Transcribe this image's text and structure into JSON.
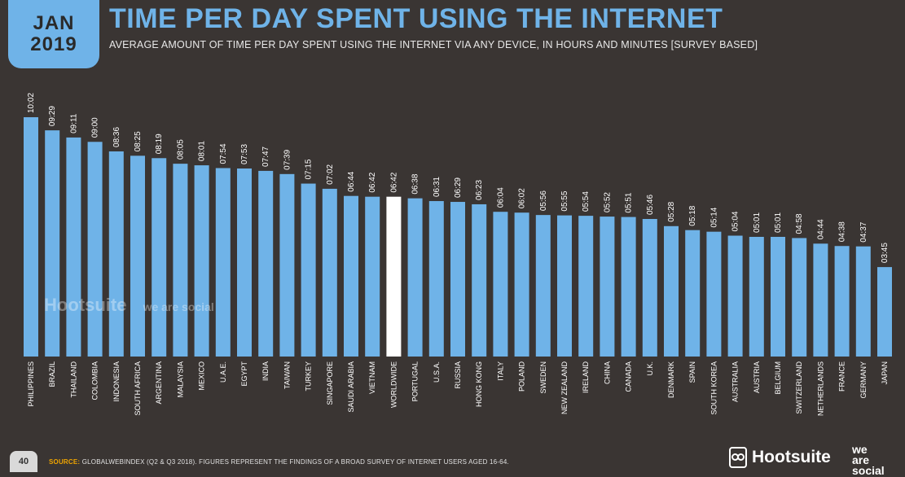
{
  "header": {
    "month": "JAN",
    "year": "2019",
    "title": "TIME PER DAY SPENT USING THE INTERNET",
    "subtitle": "AVERAGE AMOUNT OF TIME PER DAY SPENT USING THE INTERNET VIA ANY DEVICE, IN HOURS AND MINUTES [SURVEY BASED]"
  },
  "footer": {
    "page_number": "40",
    "source_label": "SOURCE:",
    "source_text": "GLOBALWEBINDEX (Q2 & Q3 2018). FIGURES REPRESENT THE FINDINGS OF A BROAD SURVEY OF INTERNET USERS AGED 16-64.",
    "brand_hootsuite": "Hootsuite",
    "brand_we": "we",
    "brand_are": "are",
    "brand_social": "social"
  },
  "watermark": {
    "hootsuite": "Hootsuite",
    "we_are_social": "we are social"
  },
  "colors": {
    "bar": "#6fb3e8",
    "highlight_bar": "#ffffff",
    "background": "#3a3533",
    "accent": "#6fb3e8",
    "source_label": "#f0a500"
  },
  "chart_data": {
    "type": "bar",
    "title": "TIME PER DAY SPENT USING THE INTERNET",
    "ylim": [
      0,
      10.2
    ],
    "categories": [
      "PHILIPPINES",
      "BRAZIL",
      "THAILAND",
      "COLOMBIA",
      "INDONESIA",
      "SOUTH AFRICA",
      "ARGENTINA",
      "MALAYSIA",
      "MEXICO",
      "U.A.E.",
      "EGYPT",
      "INDIA",
      "TAIWAN",
      "TURKEY",
      "SINGAPORE",
      "SAUDI ARABIA",
      "VIETNAM",
      "WORLDWIDE",
      "PORTUGAL",
      "U.S.A.",
      "RUSSIA",
      "HONG KONG",
      "ITALY",
      "POLAND",
      "SWEDEN",
      "NEW ZEALAND",
      "IRELAND",
      "CHINA",
      "CANADA",
      "U.K.",
      "DENMARK",
      "SPAIN",
      "SOUTH KOREA",
      "AUSTRALIA",
      "AUSTRIA",
      "BELGIUM",
      "SWITZERLAND",
      "NETHERLANDS",
      "FRANCE",
      "GERMANY",
      "JAPAN"
    ],
    "labels": [
      "10:02",
      "09:29",
      "09:11",
      "09:00",
      "08:36",
      "08:25",
      "08:19",
      "08:05",
      "08:01",
      "07:54",
      "07:53",
      "07:47",
      "07:39",
      "07:15",
      "07:02",
      "06:44",
      "06:42",
      "06:42",
      "06:38",
      "06:31",
      "06:29",
      "06:23",
      "06:04",
      "06:02",
      "05:56",
      "05:55",
      "05:54",
      "05:52",
      "05:51",
      "05:46",
      "05:28",
      "05:18",
      "05:14",
      "05:04",
      "05:01",
      "05:01",
      "04:58",
      "04:44",
      "04:38",
      "04:37",
      "03:45"
    ],
    "values": [
      10.033,
      9.483,
      9.183,
      9.0,
      8.6,
      8.417,
      8.317,
      8.083,
      8.017,
      7.9,
      7.883,
      7.783,
      7.65,
      7.25,
      7.033,
      6.733,
      6.7,
      6.7,
      6.633,
      6.517,
      6.483,
      6.383,
      6.067,
      6.033,
      5.933,
      5.917,
      5.9,
      5.867,
      5.85,
      5.767,
      5.467,
      5.3,
      5.233,
      5.067,
      5.017,
      5.017,
      4.967,
      4.733,
      4.633,
      4.617,
      3.75
    ],
    "highlight_category": "WORLDWIDE"
  }
}
